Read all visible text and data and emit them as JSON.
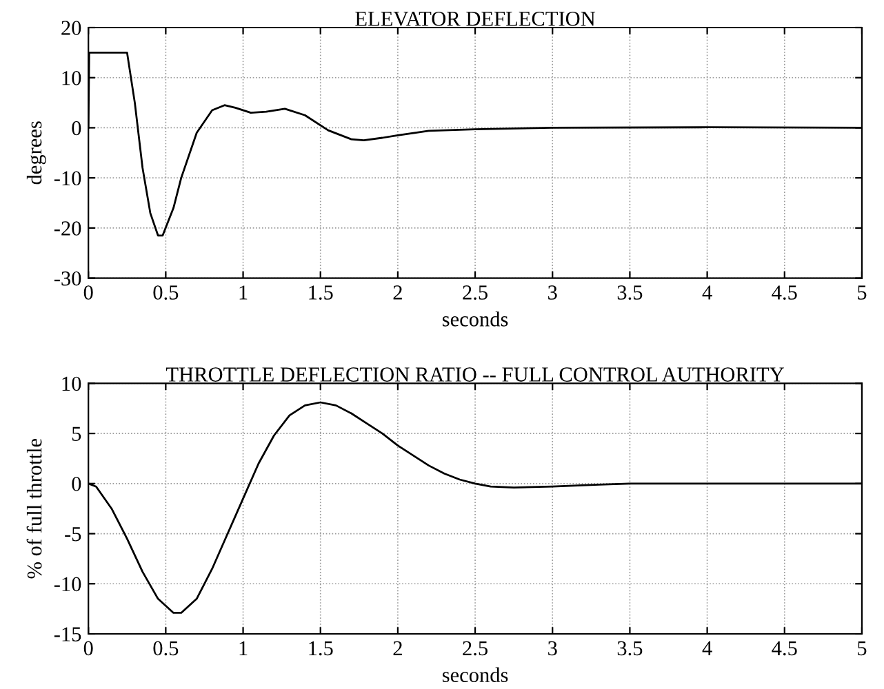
{
  "chart_data": [
    {
      "type": "line",
      "title": "ELEVATOR DEFLECTION",
      "xlabel": "seconds",
      "ylabel": "degrees",
      "x": [
        0,
        0.005,
        0.25,
        0.3,
        0.35,
        0.4,
        0.45,
        0.48,
        0.55,
        0.6,
        0.7,
        0.8,
        0.88,
        0.95,
        1.05,
        1.15,
        1.27,
        1.4,
        1.55,
        1.7,
        1.78,
        1.9,
        2.0,
        2.2,
        2.5,
        3,
        4,
        5
      ],
      "series": [
        {
          "color": "#000000",
          "values": [
            0,
            15,
            15,
            5,
            -8,
            -17,
            -21.5,
            -21.5,
            -16,
            -10,
            -1,
            3.5,
            4.5,
            4,
            3,
            3.2,
            3.8,
            2.5,
            -0.5,
            -2.3,
            -2.5,
            -2,
            -1.5,
            -0.6,
            -0.3,
            0,
            0.1,
            0
          ]
        }
      ],
      "xlim": [
        0,
        5
      ],
      "ylim": [
        -30,
        20
      ],
      "xticks": [
        0,
        0.5,
        1,
        1.5,
        2,
        2.5,
        3,
        3.5,
        4,
        4.5,
        5
      ],
      "yticks": [
        -30,
        -20,
        -10,
        0,
        10,
        20
      ],
      "grid": true,
      "line_style": "solid"
    },
    {
      "type": "line",
      "title": "THROTTLE DEFLECTION RATIO -- FULL CONTROL AUTHORITY",
      "xlabel": "seconds",
      "ylabel": "% of full throttle",
      "x": [
        0,
        0.05,
        0.15,
        0.25,
        0.35,
        0.45,
        0.55,
        0.6,
        0.7,
        0.8,
        0.9,
        1.0,
        1.1,
        1.2,
        1.3,
        1.4,
        1.5,
        1.6,
        1.7,
        1.8,
        1.9,
        2.0,
        2.1,
        2.2,
        2.3,
        2.4,
        2.5,
        2.6,
        2.75,
        3.0,
        3.3,
        3.5,
        4,
        5
      ],
      "series": [
        {
          "color": "#000000",
          "values": [
            0,
            -0.3,
            -2.5,
            -5.5,
            -8.8,
            -11.5,
            -12.9,
            -12.9,
            -11.5,
            -8.5,
            -5,
            -1.5,
            2,
            4.8,
            6.8,
            7.8,
            8.1,
            7.8,
            7,
            6,
            5,
            3.8,
            2.8,
            1.8,
            1,
            0.4,
            0,
            -0.3,
            -0.4,
            -0.3,
            -0.1,
            0,
            0,
            0
          ]
        }
      ],
      "xlim": [
        0,
        5
      ],
      "ylim": [
        -15,
        10
      ],
      "xticks": [
        0,
        0.5,
        1,
        1.5,
        2,
        2.5,
        3,
        3.5,
        4,
        4.5,
        5
      ],
      "yticks": [
        -15,
        -10,
        -5,
        0,
        5,
        10
      ],
      "grid": true,
      "line_style": "solid"
    }
  ]
}
